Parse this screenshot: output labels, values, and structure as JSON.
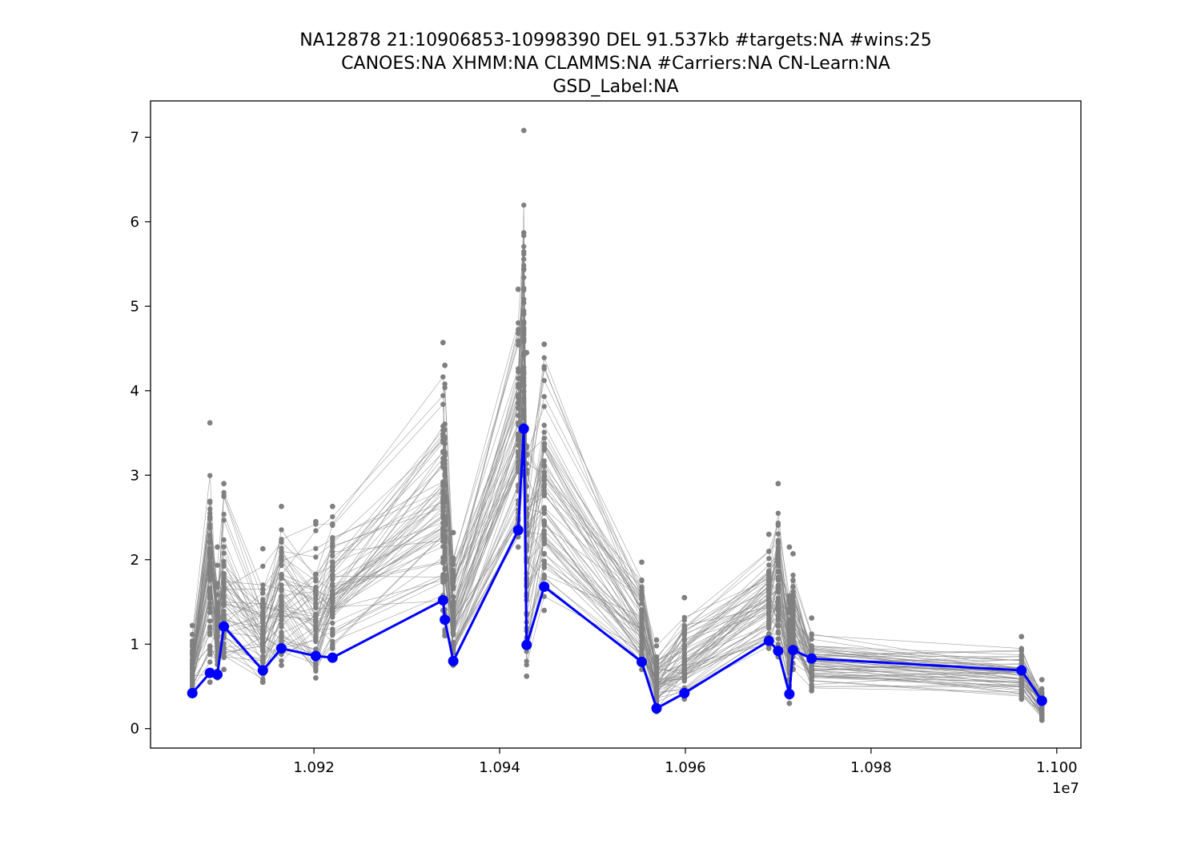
{
  "chart_data": {
    "type": "line",
    "title_lines": [
      "NA12878 21:10906853-10998390 DEL 91.537kb #targets:NA #wins:25",
      "CANOES:NA XHMM:NA CLAMMS:NA #Carriers:NA CN-Learn:NA",
      "GSD_Label:NA"
    ],
    "xlabel": "",
    "ylabel": "",
    "x_offset_label": "1e7",
    "xlim": [
      10902400,
      11002600
    ],
    "ylim": [
      -0.23,
      7.43
    ],
    "x_ticks": [
      10920000,
      10940000,
      10960000,
      10980000,
      11000000
    ],
    "x_tick_labels": [
      "1.092",
      "1.094",
      "1.096",
      "1.098",
      "1.100"
    ],
    "y_ticks": [
      0,
      1,
      2,
      3,
      4,
      5,
      6,
      7
    ],
    "y_tick_labels": [
      "0",
      "1",
      "2",
      "3",
      "4",
      "5",
      "6",
      "7"
    ],
    "grid": false,
    "colors": {
      "highlight": "#0000ff",
      "background_samples": "#808080",
      "axes": "#000000"
    },
    "background_series_count": 60,
    "x": [
      10906900,
      10908800,
      10909600,
      10910300,
      10914500,
      10916500,
      10920200,
      10922000,
      10933900,
      10934100,
      10935000,
      10942000,
      10942600,
      10942900,
      10944800,
      10955300,
      10956900,
      10959900,
      10969000,
      10970000,
      10971200,
      10971600,
      10973600,
      10996200,
      10998400
    ],
    "series": [
      {
        "name": "NA12878",
        "values": [
          0.42,
          0.66,
          0.64,
          1.21,
          0.69,
          0.95,
          0.86,
          0.84,
          1.52,
          1.29,
          0.8,
          2.35,
          3.55,
          0.99,
          1.68,
          0.79,
          0.24,
          0.42,
          1.04,
          0.92,
          0.41,
          0.93,
          0.83,
          0.69,
          0.33
        ]
      }
    ],
    "background_range": {
      "min": [
        0.45,
        0.55,
        0.6,
        0.7,
        0.55,
        0.75,
        0.6,
        0.95,
        1.4,
        1.1,
        0.75,
        2.15,
        3.0,
        0.62,
        1.4,
        0.7,
        0.2,
        0.35,
        0.95,
        0.85,
        0.3,
        0.7,
        0.45,
        0.35,
        0.1
      ],
      "max": [
        1.22,
        3.62,
        2.15,
        2.9,
        2.13,
        2.63,
        2.45,
        2.63,
        4.57,
        4.3,
        2.32,
        5.2,
        7.08,
        4.45,
        4.55,
        1.97,
        1.05,
        1.55,
        2.3,
        2.9,
        2.15,
        2.07,
        1.31,
        1.09,
        0.58
      ]
    }
  }
}
